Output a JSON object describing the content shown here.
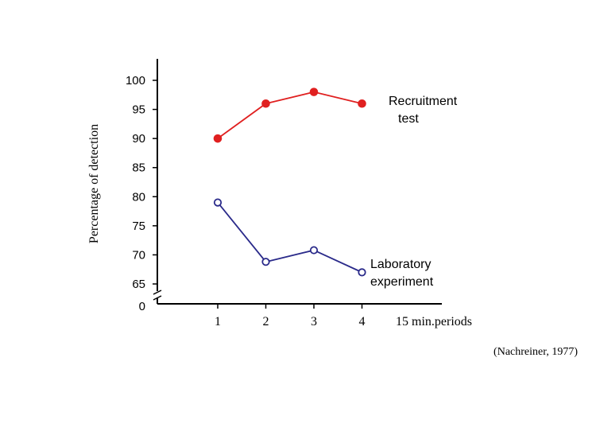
{
  "chart_data": {
    "type": "line",
    "x": [
      1,
      2,
      3,
      4
    ],
    "xticks": [
      "1",
      "2",
      "3",
      "4"
    ],
    "xlabel": "15 min.periods",
    "ylabel": "Percentage of detection",
    "yticks": [
      100,
      95,
      90,
      85,
      80,
      75,
      70,
      65,
      0
    ],
    "ylim": [
      62.5,
      103
    ],
    "axis_break": true,
    "series": [
      {
        "name": "Recruitment test",
        "legend_lines": [
          "Recruitment",
          "test"
        ],
        "values": [
          90,
          96,
          98,
          96
        ],
        "color": "#e02020",
        "marker": "filled-circle"
      },
      {
        "name": "Laboratory experiment",
        "legend_lines": [
          "Laboratory",
          "experiment"
        ],
        "values": [
          79,
          68.8,
          70.8,
          67
        ],
        "color": "#2a2a8a",
        "marker": "open-circle"
      }
    ],
    "source": "(Nachreiner, 1977)"
  }
}
